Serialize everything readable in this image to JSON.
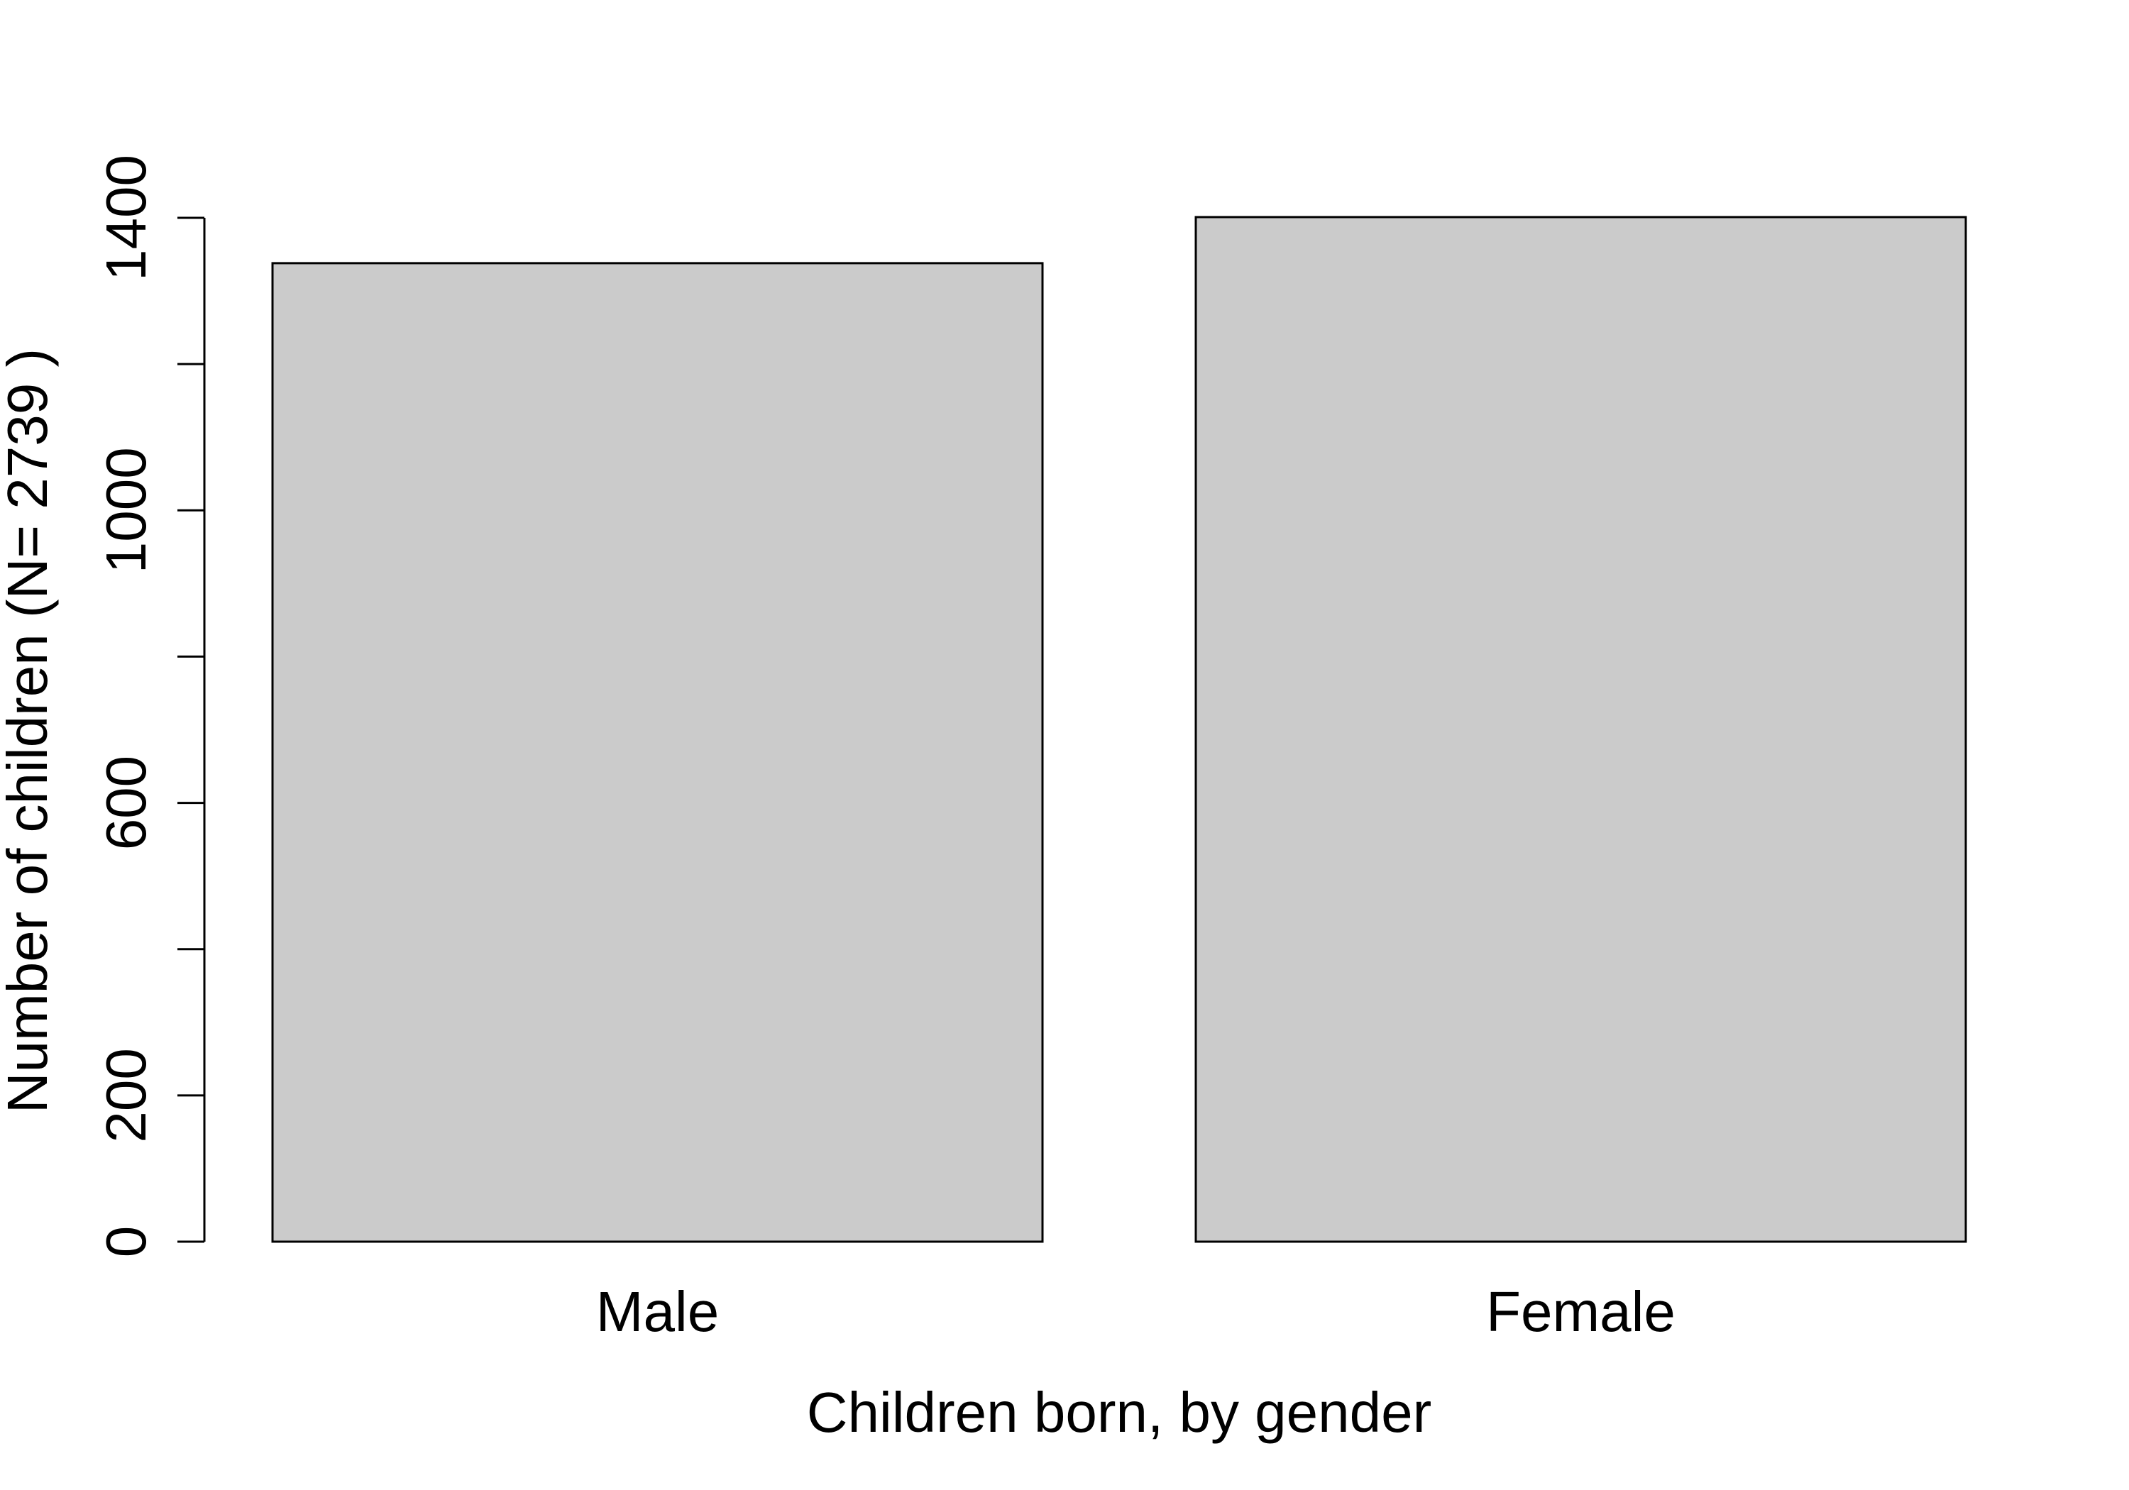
{
  "chart_data": {
    "type": "bar",
    "title": "",
    "xlabel": "Children born, by gender",
    "ylabel": "Number of children (N= 2739 )",
    "categories": [
      "Male",
      "Female"
    ],
    "values": [
      1338,
      1401
    ],
    "ylim": [
      0,
      1400
    ],
    "yticks": [
      0,
      200,
      400,
      600,
      800,
      1000,
      1200,
      1400
    ],
    "ytick_labels": [
      "0",
      "200",
      "",
      "600",
      "",
      "1000",
      "",
      "1400"
    ],
    "grid": false,
    "bar_color": "#cbcbcb",
    "border_color": "#000000"
  }
}
